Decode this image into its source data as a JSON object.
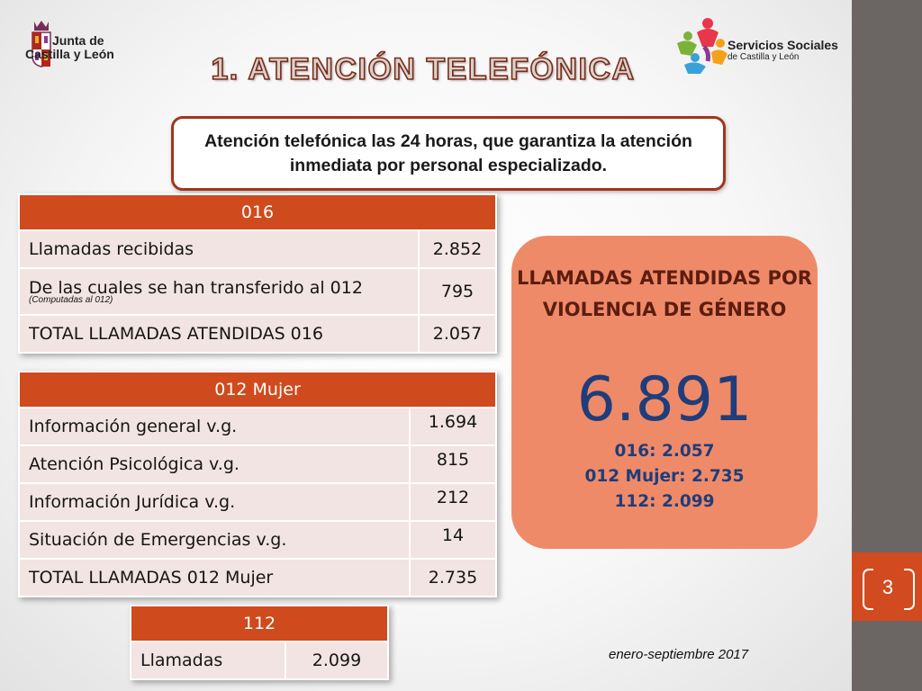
{
  "header": {
    "logo_left_line1": "Junta de",
    "logo_left_line2": "Castilla y León",
    "logo_right_line1": "Servicios Sociales",
    "logo_right_line2": "de Castilla y León",
    "title": "1. ATENCIÓN TELEFÓNICA"
  },
  "callout": {
    "text": "Atención telefónica las 24 horas, que garantiza la atención inmediata por personal especializado."
  },
  "table_016": {
    "header": "016",
    "rows": [
      {
        "label": "Llamadas recibidas",
        "note": "",
        "value": "2.852"
      },
      {
        "label": "De las cuales se han transferido al 012",
        "note": "(Computadas al 012)",
        "value": "795"
      },
      {
        "label": "TOTAL LLAMADAS ATENDIDAS 016",
        "note": "",
        "value": "2.057"
      }
    ]
  },
  "table_012": {
    "header": "012  Mujer",
    "rows": [
      {
        "label": "Información general v.g.",
        "value": "1.694"
      },
      {
        "label": "Atención Psicológica v.g.",
        "value": "815"
      },
      {
        "label": "Información Jurídica v.g.",
        "value": "212"
      },
      {
        "label": "Situación de Emergencias v.g.",
        "value": "14"
      },
      {
        "label": "TOTAL LLAMADAS 012 Mujer",
        "value": "2.735"
      }
    ]
  },
  "table_112": {
    "header": "112",
    "rows": [
      {
        "label": "Llamadas",
        "value": "2.099"
      }
    ]
  },
  "summary": {
    "title": "LLAMADAS ATENDIDAS POR VIOLENCIA DE GÉNERO",
    "total": "6.891",
    "line1": "016: 2.057",
    "line2": "012 Mujer: 2.735",
    "line3": "112: 2.099"
  },
  "footer": {
    "period": "enero-septiembre 2017"
  },
  "page": {
    "number": "3"
  },
  "colors": {
    "accent": "#cf4a1d",
    "cell_bg": "#f2e4e2",
    "summary_bg": "#ef8a68",
    "summary_text": "#1f3d7a",
    "sidebar": "#6b6663"
  }
}
